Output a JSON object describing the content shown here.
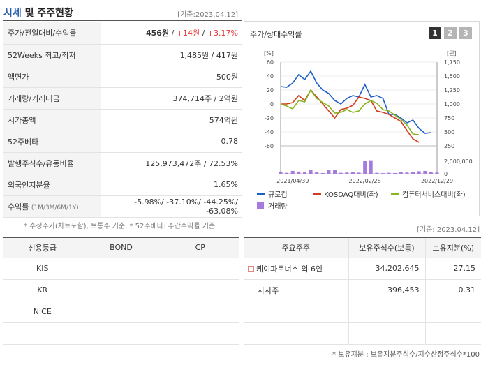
{
  "header": {
    "title_accent": "시세",
    "title_rest": " 및 주주현황",
    "base_date": "[기준:2023.04.12]"
  },
  "info_rows": [
    {
      "label": "주가/전일대비/수익률",
      "price": "456원",
      "sep1": " / ",
      "change": "+14원",
      "sep2": " / ",
      "rate": "+3.17%"
    },
    {
      "label": "52Weeks 최고/최저",
      "value": "1,485원 / 417원"
    },
    {
      "label": "액면가",
      "value": "500원"
    },
    {
      "label": "거래량/거래대금",
      "value": "374,714주 / 2억원"
    },
    {
      "label": "시가총액",
      "value": "574억원"
    },
    {
      "label": "52주베타",
      "value": "0.78"
    },
    {
      "label": "발행주식수/유동비율",
      "value": "125,973,472주 / 72.53%"
    },
    {
      "label": "외국인지분율",
      "value": "1.65%"
    },
    {
      "label": "수익률",
      "sublabel": "(1M/3M/6M/1Y)",
      "value": "-5.98%/ -37.10%/ -44.25%/ -63.08%"
    }
  ],
  "note_left": "* 수정주가(차트포함), 보통주 기준, * 52주베타: 주간수익률 기준",
  "chart_panel": {
    "title": "주가/상대수익률",
    "tabs": [
      "1",
      "2",
      "3"
    ],
    "active_tab": "1"
  },
  "chart_data": {
    "type": "line",
    "left_unit": "[%]",
    "right_unit": "[원]",
    "left_ylim": [
      -60,
      60
    ],
    "left_ticks": [
      "60",
      "40",
      "20",
      "0",
      "-20",
      "-40",
      "-60"
    ],
    "right_ylim": [
      250,
      1750
    ],
    "right_ticks": [
      "1,750",
      "1,500",
      "1,250",
      "1,000",
      "750",
      "500",
      "250"
    ],
    "x_ticks": [
      "2021/04/30",
      "2022/02/28",
      "2022/12/29"
    ],
    "x_tick_index": [
      2,
      14,
      26
    ],
    "volume_ticks": [
      "2,000,000",
      "0"
    ],
    "volume_max": 2000000,
    "series": [
      {
        "name": "큐로컴",
        "color": "#1f5fc8",
        "axis": "left",
        "values": [
          25,
          24,
          30,
          42,
          35,
          47,
          30,
          20,
          15,
          5,
          0,
          8,
          12,
          10,
          28,
          10,
          12,
          8,
          -15,
          -15,
          -20,
          -27,
          -23,
          -35,
          -42,
          -41
        ]
      },
      {
        "name": "KOSDAQ대비(좌)",
        "color": "#d23c1e",
        "axis": "left",
        "values": [
          0,
          0,
          2,
          12,
          5,
          20,
          10,
          0,
          -10,
          -20,
          -8,
          -6,
          -2,
          10,
          8,
          5,
          -10,
          -12,
          -15,
          -20,
          -25,
          -38,
          -50,
          -55
        ]
      },
      {
        "name": "컴퓨터서비스대비(좌)",
        "color": "#86b51f",
        "axis": "left",
        "values": [
          0,
          -3,
          -7,
          5,
          3,
          20,
          8,
          2,
          -3,
          -13,
          -12,
          -8,
          -12,
          -10,
          0,
          5,
          1,
          -8,
          -10,
          -16,
          -22,
          -30,
          -43,
          -44
        ]
      },
      {
        "name": "거래량",
        "color": "#a57be0",
        "axis": "volume",
        "values": [
          350000,
          150000,
          450000,
          350000,
          250000,
          650000,
          300000,
          120000,
          550000,
          650000,
          150000,
          200000,
          250000,
          180000,
          2100000,
          2150000,
          150000,
          100000,
          150000,
          120000,
          250000,
          200000,
          300000,
          400000,
          450000,
          300000,
          200000
        ]
      }
    ]
  },
  "base_right": "[기준: 2023.04.12]",
  "credit": {
    "headers": [
      "신용등급",
      "BOND",
      "CP"
    ],
    "rows": [
      [
        "KIS",
        "",
        ""
      ],
      [
        "KR",
        "",
        ""
      ],
      [
        "NICE",
        "",
        ""
      ],
      [
        "",
        "",
        ""
      ]
    ]
  },
  "holders": {
    "headers": [
      "주요주주",
      "보유주식수(보통)",
      "보유지분(%)"
    ],
    "rows": [
      {
        "name": "케이파트너스 외 6인",
        "expandable": true,
        "shares": "34,202,645",
        "pct": "27.15"
      },
      {
        "name": "자사주",
        "expandable": false,
        "shares": "396,453",
        "pct": "0.31"
      },
      {
        "name": "",
        "expandable": false,
        "shares": "",
        "pct": ""
      },
      {
        "name": "",
        "expandable": false,
        "shares": "",
        "pct": ""
      }
    ]
  },
  "note_bottom": "* 보유지분 : 보유지분주식수/지수산정주식수*100"
}
